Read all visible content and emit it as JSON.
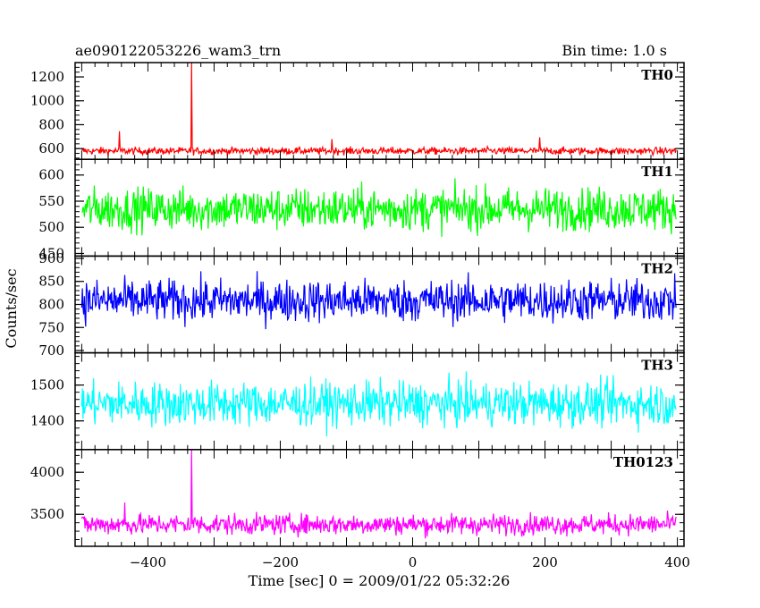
{
  "figure": {
    "title": "ae090122053226_wam3_trn",
    "bin_time": "Bin time: 1.0 s",
    "ylabel": "Counts/sec",
    "xlabel": "Time [sec] 0 = 2009/01/22 05:32:26"
  },
  "chart_data": {
    "type": "line",
    "xlim": [
      -510,
      410
    ],
    "x_ticks": [
      -400,
      -200,
      0,
      200,
      400
    ],
    "x_tick_labels": [
      "−400",
      "−200",
      "0",
      "200",
      "400"
    ],
    "series_x_range": [
      -500,
      398
    ],
    "panels": [
      {
        "name": "TH0",
        "color": "#ff0000",
        "ylim": [
          510,
          1320
        ],
        "y_ticks": [
          600,
          800,
          1000,
          1200
        ],
        "y_tick_labels": [
          "600",
          "800",
          "1000",
          "1200"
        ],
        "baseline": 580,
        "noise_amp": 30,
        "spikes": [
          {
            "x": -443,
            "y": 745
          },
          {
            "x": -334,
            "y": 1320
          },
          {
            "x": -122,
            "y": 680
          },
          {
            "x": 192,
            "y": 695
          }
        ]
      },
      {
        "name": "TH1",
        "color": "#00ff00",
        "ylim": [
          445,
          630
        ],
        "y_ticks": [
          450,
          500,
          550,
          600
        ],
        "y_tick_labels": [
          "450",
          "500",
          "550",
          "600"
        ],
        "baseline": 535,
        "noise_amp": 40,
        "spikes": []
      },
      {
        "name": "TH2",
        "color": "#0000ff",
        "ylim": [
          695,
          905
        ],
        "y_ticks": [
          700,
          750,
          800,
          850,
          900
        ],
        "y_tick_labels": [
          "700",
          "750",
          "800",
          "850",
          "900"
        ],
        "baseline": 808,
        "noise_amp": 45,
        "spikes": []
      },
      {
        "name": "TH3",
        "color": "#00ffff",
        "ylim": [
          1320,
          1590
        ],
        "y_ticks": [
          1400,
          1500
        ],
        "y_tick_labels": [
          "1400",
          "1500"
        ],
        "baseline": 1448,
        "noise_amp": 60,
        "spikes": []
      },
      {
        "name": "TH0123",
        "color": "#ff00ff",
        "ylim": [
          3120,
          4270
        ],
        "y_ticks": [
          3500,
          4000
        ],
        "y_tick_labels": [
          "3500",
          "4000"
        ],
        "baseline": 3380,
        "noise_amp": 120,
        "spikes": [
          {
            "x": -334,
            "y": 4270
          },
          {
            "x": -435,
            "y": 3640
          }
        ]
      }
    ]
  }
}
